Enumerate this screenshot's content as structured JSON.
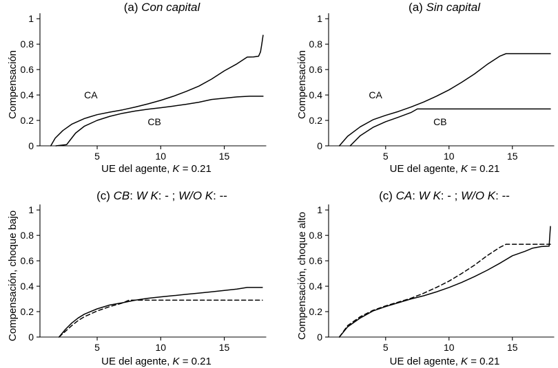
{
  "chart_data": [
    {
      "type": "line",
      "title": [
        {
          "text": "(a) ",
          "italic": false
        },
        {
          "text": "Con capital",
          "italic": true
        }
      ],
      "xlabel": [
        {
          "text": "UE del agente, ",
          "italic": false
        },
        {
          "text": "K",
          "italic": true
        },
        {
          "text": " = 0.21",
          "italic": false
        }
      ],
      "ylabel": "Compensación",
      "xlim": [
        0.5,
        18.6
      ],
      "ylim": [
        0,
        1.05
      ],
      "xticks": [
        5,
        10,
        15
      ],
      "xtick_labels": [
        "5",
        "10",
        "15"
      ],
      "yticks": [
        0,
        0.2,
        0.4,
        0.6,
        0.8,
        1
      ],
      "ytick_labels": [
        "0",
        "0.2",
        "0.4",
        "0.6",
        "0.8",
        "1"
      ],
      "annotations": [
        {
          "text": "CA",
          "x": 4.5,
          "y": 0.4
        },
        {
          "text": "CB",
          "x": 9.5,
          "y": 0.19
        }
      ],
      "series": [
        {
          "name": "CA",
          "style": "solid",
          "x": [
            1.35,
            1.7,
            2.3,
            3,
            4,
            5,
            6,
            7,
            8,
            9,
            10,
            11,
            12,
            13,
            14,
            15,
            16,
            16.8,
            17.3,
            17.7,
            17.85,
            17.95,
            18.05
          ],
          "y": [
            0,
            0.06,
            0.12,
            0.17,
            0.215,
            0.245,
            0.265,
            0.283,
            0.305,
            0.33,
            0.358,
            0.39,
            0.428,
            0.47,
            0.525,
            0.59,
            0.645,
            0.698,
            0.7,
            0.705,
            0.74,
            0.8,
            0.87
          ]
        },
        {
          "name": "CB",
          "style": "solid",
          "x": [
            1.75,
            2.6,
            2.8,
            3.3,
            4,
            5,
            6,
            7,
            8,
            9,
            10,
            11,
            12,
            13,
            14,
            15,
            16,
            17,
            18.05
          ],
          "y": [
            0,
            0.01,
            0.035,
            0.1,
            0.155,
            0.2,
            0.232,
            0.256,
            0.274,
            0.288,
            0.3,
            0.313,
            0.327,
            0.343,
            0.365,
            0.375,
            0.385,
            0.39,
            0.39
          ]
        }
      ]
    },
    {
      "type": "line",
      "title": [
        {
          "text": "(a) ",
          "italic": false
        },
        {
          "text": "Sin capital",
          "italic": true
        }
      ],
      "xlabel": [
        {
          "text": "UE del agente, ",
          "italic": false
        },
        {
          "text": "K",
          "italic": true
        },
        {
          "text": " = 0.21",
          "italic": false
        }
      ],
      "ylabel": "Compensación",
      "xlim": [
        0.5,
        18.6
      ],
      "ylim": [
        0,
        1.05
      ],
      "xticks": [
        5,
        10,
        15
      ],
      "xtick_labels": [
        "5",
        "10",
        "15"
      ],
      "yticks": [
        0,
        0.2,
        0.4,
        0.6,
        0.8,
        1
      ],
      "ytick_labels": [
        "0",
        "0.2",
        "0.4",
        "0.6",
        "0.8",
        "1"
      ],
      "annotations": [
        {
          "text": "CA",
          "x": 4.2,
          "y": 0.4
        },
        {
          "text": "CB",
          "x": 9.3,
          "y": 0.19
        }
      ],
      "series": [
        {
          "name": "CA",
          "style": "solid",
          "x": [
            1.35,
            2,
            3,
            4,
            5,
            6,
            7,
            8,
            9,
            10,
            11,
            12,
            13,
            14,
            14.5,
            15,
            18
          ],
          "y": [
            0,
            0.075,
            0.15,
            0.205,
            0.24,
            0.27,
            0.305,
            0.345,
            0.39,
            0.44,
            0.5,
            0.565,
            0.64,
            0.705,
            0.725,
            0.725,
            0.725
          ]
        },
        {
          "name": "CB",
          "style": "solid",
          "x": [
            2.2,
            3,
            4,
            5,
            6,
            7,
            7.5,
            12,
            18
          ],
          "y": [
            0,
            0.08,
            0.145,
            0.19,
            0.225,
            0.262,
            0.29,
            0.29,
            0.29
          ]
        }
      ]
    },
    {
      "type": "line",
      "title": [
        {
          "text": "(c) ",
          "italic": false
        },
        {
          "text": "CB",
          "italic": true
        },
        {
          "text": ": ",
          "italic": false
        },
        {
          "text": "W K",
          "italic": true
        },
        {
          "text": ": - ; ",
          "italic": false
        },
        {
          "text": "W/O K",
          "italic": true
        },
        {
          "text": ": --",
          "italic": false
        }
      ],
      "xlabel": [
        {
          "text": "UE del agente, ",
          "italic": false
        },
        {
          "text": "K",
          "italic": true
        },
        {
          "text": " = 0.21",
          "italic": false
        }
      ],
      "ylabel": "Compensación, choque bajo",
      "xlim": [
        0.5,
        18.6
      ],
      "ylim": [
        0,
        1.05
      ],
      "xticks": [
        5,
        10,
        15
      ],
      "xtick_labels": [
        "5",
        "10",
        "15"
      ],
      "yticks": [
        0,
        0.2,
        0.4,
        0.6,
        0.8,
        1
      ],
      "ytick_labels": [
        "0",
        "0.2",
        "0.4",
        "0.6",
        "0.8",
        "1"
      ],
      "annotations": [],
      "series": [
        {
          "name": "W K",
          "style": "solid",
          "x": [
            2,
            2.5,
            3,
            3.5,
            4,
            5,
            6,
            7,
            8,
            9,
            10,
            11,
            12,
            13,
            14,
            15,
            16,
            16.8,
            18
          ],
          "y": [
            0,
            0.06,
            0.11,
            0.15,
            0.18,
            0.222,
            0.252,
            0.27,
            0.29,
            0.305,
            0.316,
            0.326,
            0.336,
            0.346,
            0.356,
            0.367,
            0.378,
            0.39,
            0.39
          ]
        },
        {
          "name": "W/O K",
          "style": "dashed",
          "x": [
            2,
            2.5,
            3,
            3.5,
            4,
            5,
            6,
            7,
            7.5,
            10,
            14,
            18
          ],
          "y": [
            0,
            0.045,
            0.09,
            0.13,
            0.16,
            0.205,
            0.24,
            0.268,
            0.29,
            0.29,
            0.29,
            0.29
          ]
        }
      ]
    },
    {
      "type": "line",
      "title": [
        {
          "text": "(c) ",
          "italic": false
        },
        {
          "text": "CA",
          "italic": true
        },
        {
          "text": ": ",
          "italic": false
        },
        {
          "text": "W K",
          "italic": true
        },
        {
          "text": ": - ; ",
          "italic": false
        },
        {
          "text": "W/O K",
          "italic": true
        },
        {
          "text": ": --",
          "italic": false
        }
      ],
      "xlabel": [
        {
          "text": "UE del agente, ",
          "italic": false
        },
        {
          "text": "K",
          "italic": true
        },
        {
          "text": " = 0.21",
          "italic": false
        }
      ],
      "ylabel": "Compensación, choque alto",
      "xlim": [
        0.5,
        18.6
      ],
      "ylim": [
        0,
        1.05
      ],
      "xticks": [
        5,
        10,
        15
      ],
      "xtick_labels": [
        "5",
        "10",
        "15"
      ],
      "yticks": [
        0,
        0.2,
        0.4,
        0.6,
        0.8,
        1
      ],
      "ytick_labels": [
        "0",
        "0.2",
        "0.4",
        "0.6",
        "0.8",
        "1"
      ],
      "annotations": [],
      "series": [
        {
          "name": "W K",
          "style": "solid",
          "x": [
            1.35,
            2,
            3,
            4,
            5,
            6,
            7,
            8,
            9,
            10,
            11,
            12,
            13,
            14,
            15,
            16,
            16.6,
            17.3,
            17.9,
            18
          ],
          "y": [
            0,
            0.08,
            0.15,
            0.205,
            0.24,
            0.27,
            0.3,
            0.325,
            0.355,
            0.39,
            0.43,
            0.475,
            0.525,
            0.58,
            0.64,
            0.675,
            0.7,
            0.712,
            0.715,
            0.87
          ]
        },
        {
          "name": "W/O K",
          "style": "dashed",
          "x": [
            1.35,
            2,
            3,
            4,
            5,
            6,
            7,
            8,
            9,
            10,
            11,
            12,
            13,
            14,
            14.5,
            15,
            18
          ],
          "y": [
            0,
            0.09,
            0.16,
            0.21,
            0.245,
            0.275,
            0.305,
            0.345,
            0.39,
            0.44,
            0.5,
            0.565,
            0.64,
            0.705,
            0.73,
            0.73,
            0.73
          ]
        }
      ]
    }
  ]
}
